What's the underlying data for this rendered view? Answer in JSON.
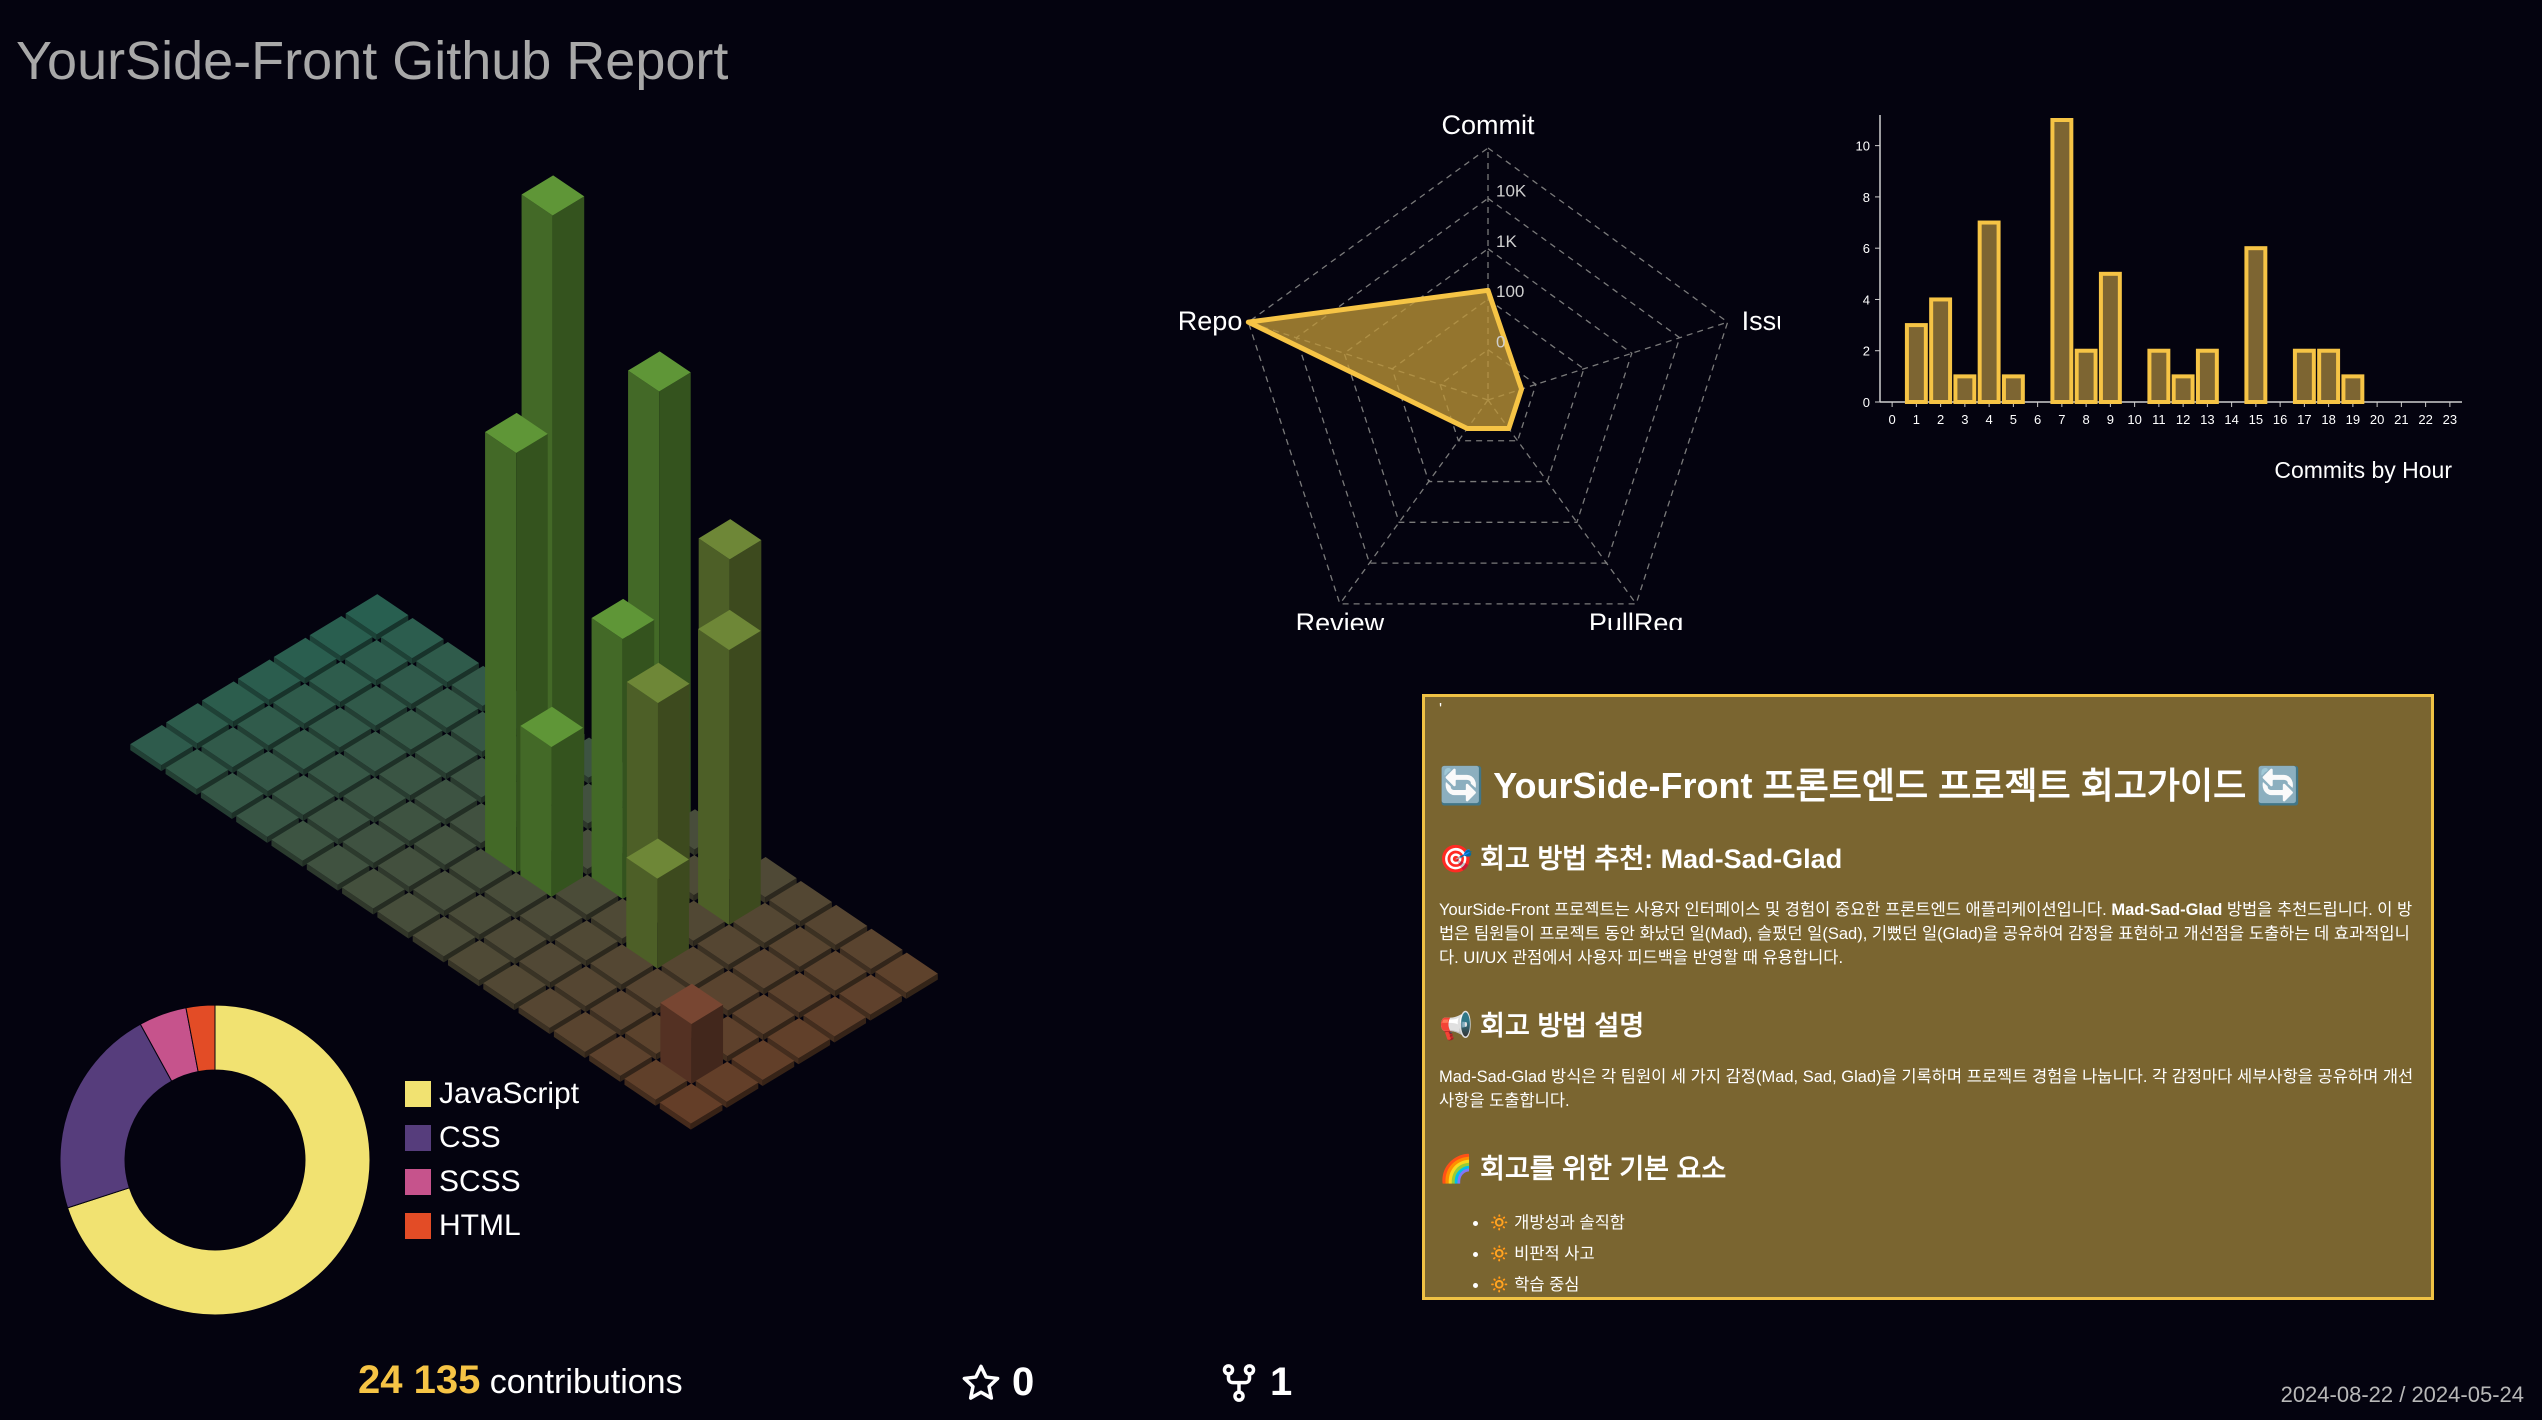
{
  "title": "YourSide-Front Github Report",
  "contributions": {
    "count": "24 135",
    "label": "contributions"
  },
  "stars": "0",
  "forks": "1",
  "date_range": "2024-08-22 / 2024-05-24",
  "colors": {
    "accent": "#f6c445",
    "background": "#04030f",
    "panel": "#7a6530",
    "panel_border": "#f0c244"
  },
  "icons": {
    "stars": "star-icon",
    "forks": "fork-icon"
  },
  "chart_data": [
    {
      "type": "pie",
      "title": "",
      "labels": [
        "JavaScript",
        "CSS",
        "SCSS",
        "HTML"
      ],
      "values": [
        70,
        22,
        5,
        3
      ],
      "colors": [
        "#f1e271",
        "#563d7c",
        "#c6538c",
        "#e34c26"
      ],
      "legend_position": "right"
    },
    {
      "type": "radar",
      "title": "",
      "axes": [
        "Commit",
        "Issue",
        "PullReq",
        "Review",
        "Repo"
      ],
      "scale": "log",
      "scale_ticks": [
        "0",
        "100",
        "1K",
        "10K"
      ],
      "values": [
        150,
        1,
        1,
        1,
        100000
      ]
    },
    {
      "type": "bar",
      "title": "Commits by Hour",
      "categories": [
        "0",
        "1",
        "2",
        "3",
        "4",
        "5",
        "6",
        "7",
        "8",
        "9",
        "10",
        "11",
        "12",
        "13",
        "14",
        "15",
        "16",
        "17",
        "18",
        "19",
        "20",
        "21",
        "22",
        "23"
      ],
      "values": [
        0,
        3,
        4,
        1,
        7,
        1,
        0,
        11,
        2,
        5,
        0,
        2,
        1,
        2,
        0,
        6,
        0,
        2,
        2,
        1,
        0,
        0,
        0,
        0
      ],
      "yticks": [
        "0",
        "2",
        "4",
        "6",
        "8",
        "10"
      ],
      "ylim": [
        0,
        11
      ]
    }
  ],
  "retro": {
    "tick": "'",
    "heading": "YourSide-Front 프론트엔드 프로젝트 회고가이드",
    "heading_emoji": "🔄",
    "section1_title": "회고 방법 추천: Mad-Sad-Glad",
    "section1_emoji": "🎯",
    "section1_text_a": "YourSide-Front 프로젝트는 사용자 인터페이스 및 경험이 중요한 프론트엔드 애플리케이션입니다. ",
    "section1_bold": "Mad-Sad-Glad",
    "section1_text_b": " 방법을 추천드립니다. 이 방법은 팀원들이 프로젝트 동안 화났던 일(Mad), 슬펐던 일(Sad), 기뻤던 일(Glad)을 공유하여 감정을 표현하고 개선점을 도출하는 데 효과적입니다. UI/UX 관점에서 사용자 피드백을 반영할 때 유용합니다.",
    "section2_title": "회고 방법 설명",
    "section2_emoji": "📢",
    "section2_text": "Mad-Sad-Glad 방식은 각 팀원이 세 가지 감정(Mad, Sad, Glad)을 기록하며 프로젝트 경험을 나눕니다. 각 감정마다 세부사항을 공유하며 개선 사항을 도출합니다.",
    "section3_title": "회고를 위한 기본 요소",
    "section3_emoji": "🌈",
    "items": [
      {
        "emoji": "🔅",
        "text": "개방성과 솔직함"
      },
      {
        "emoji": "🔅",
        "text": "비판적 사고"
      },
      {
        "emoji": "🔅",
        "text": "학습 중심"
      }
    ]
  }
}
